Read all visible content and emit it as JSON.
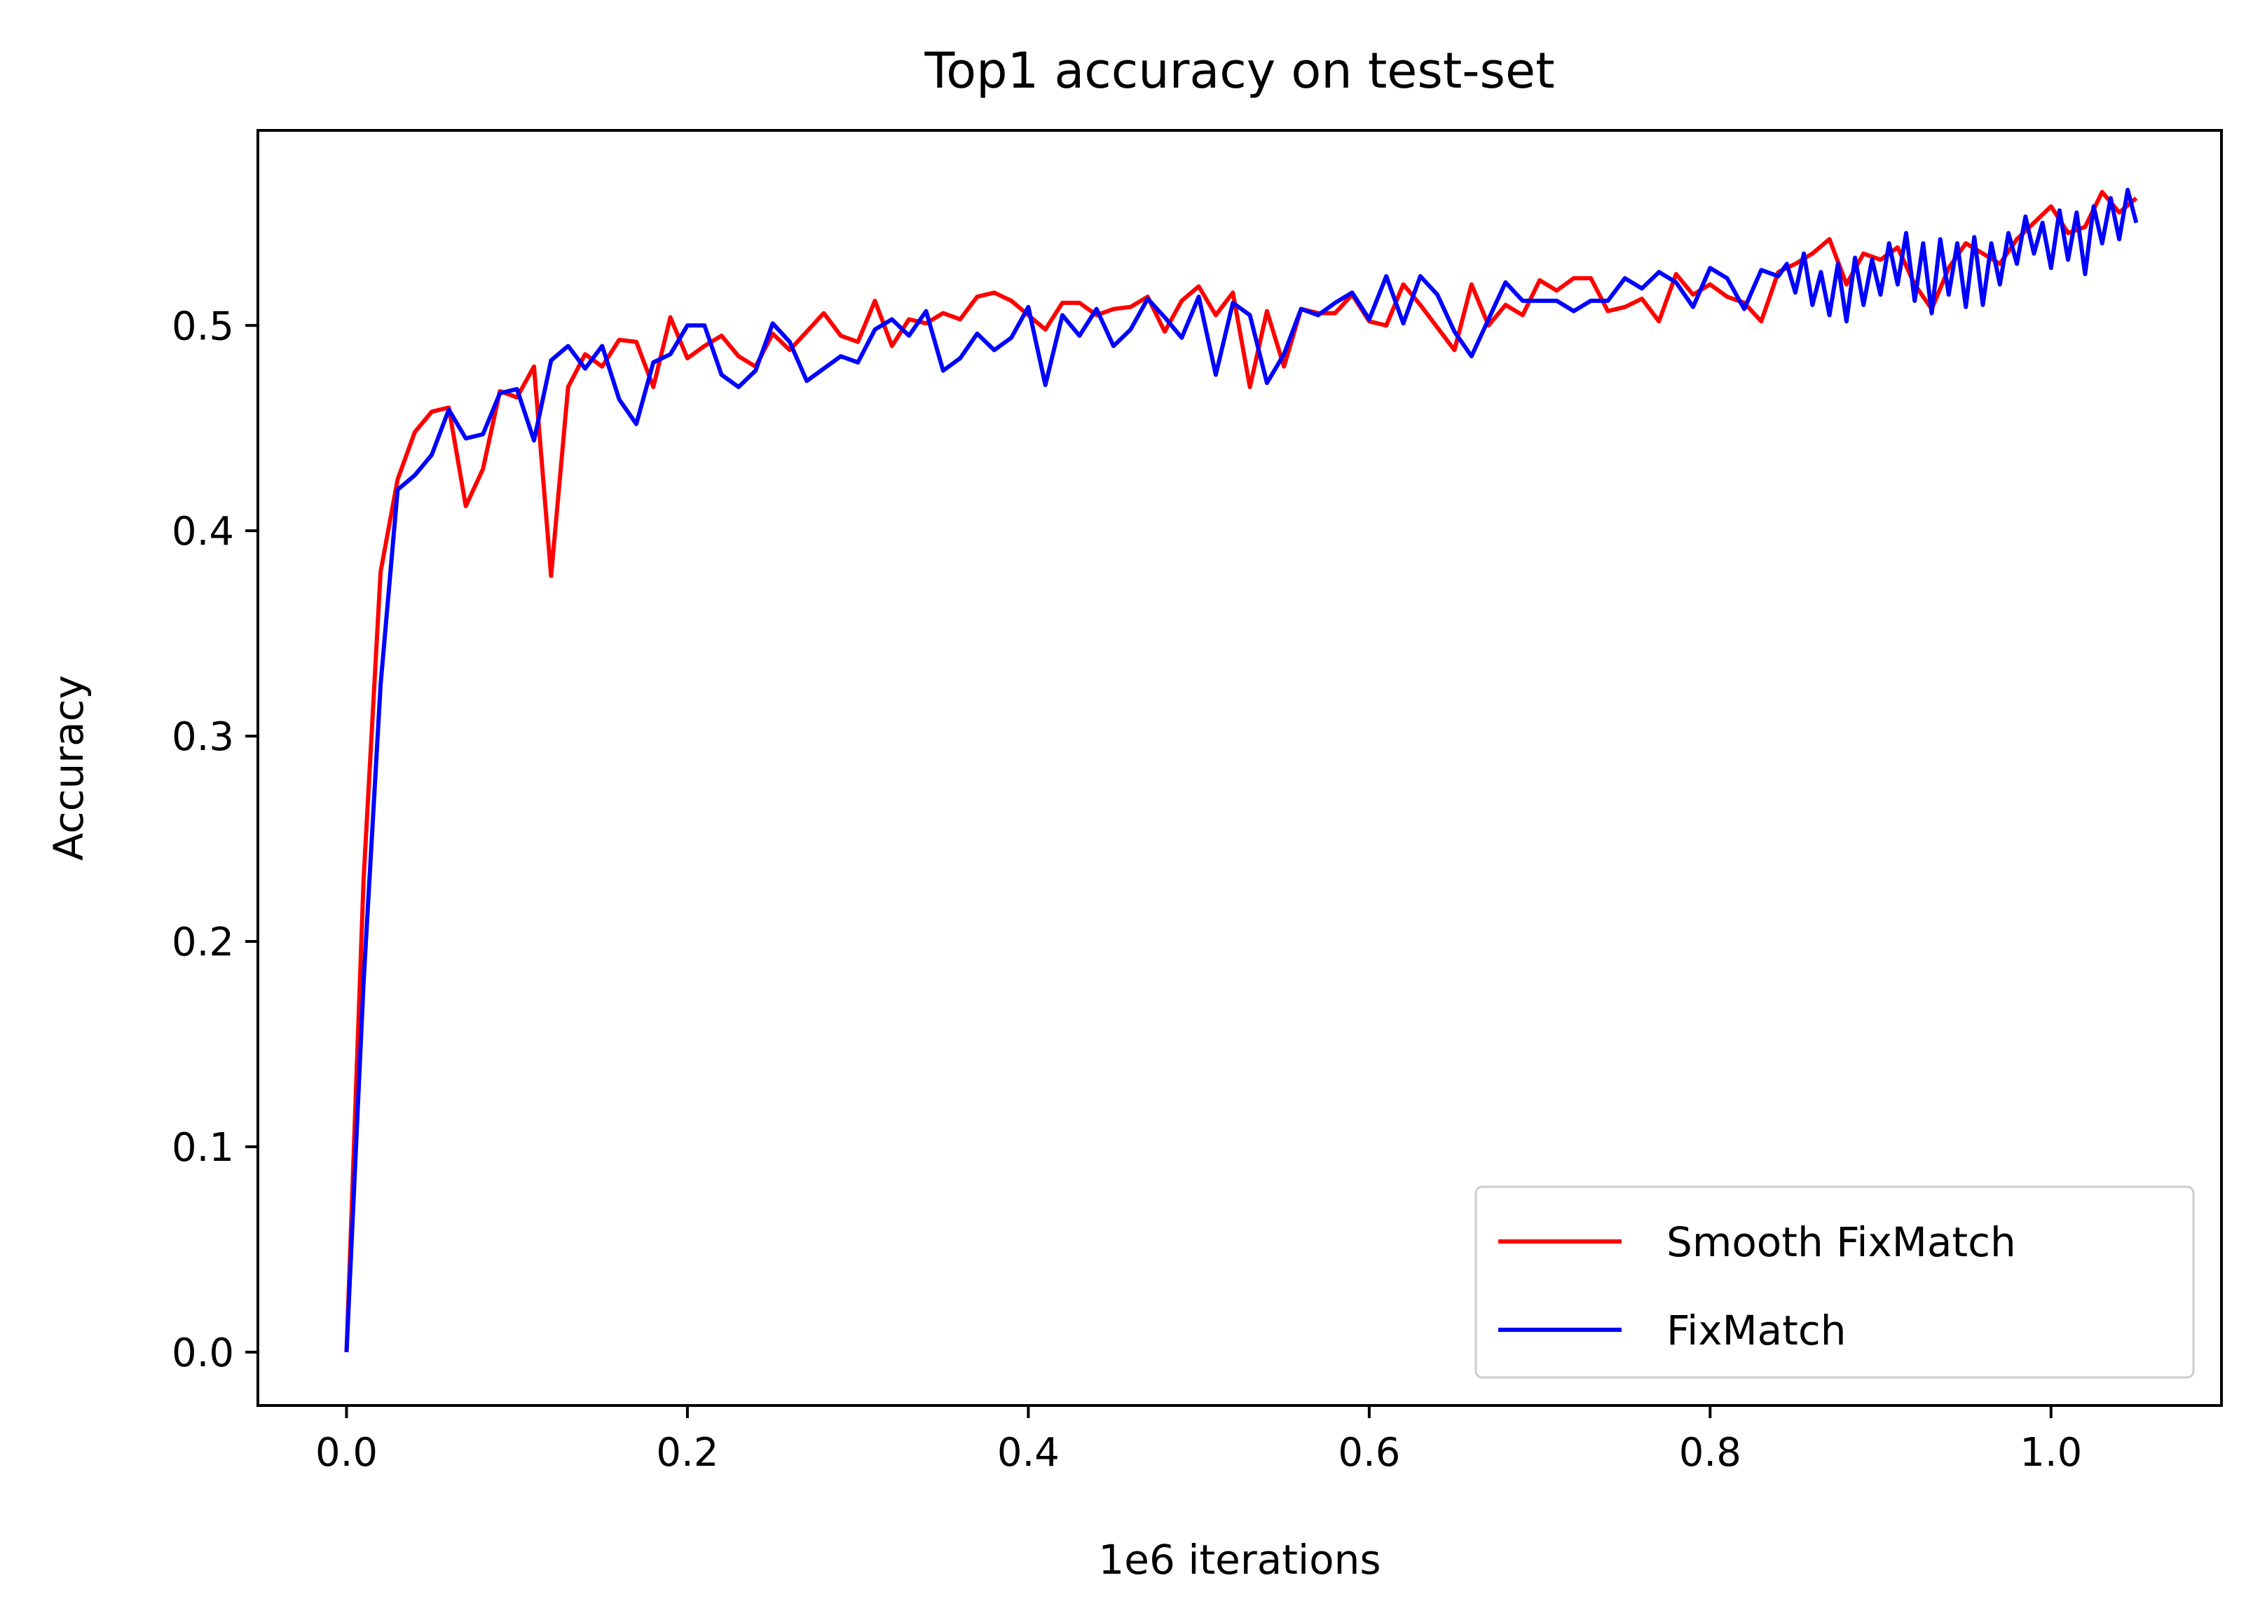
{
  "chart_data": {
    "type": "line",
    "title": "Top1 accuracy on test-set",
    "xlabel": "1e6 iterations",
    "ylabel": "Accuracy",
    "xlim": [
      -0.052,
      1.1
    ],
    "ylim": [
      -0.026,
      0.595
    ],
    "xticks": [
      0.0,
      0.2,
      0.4,
      0.6,
      0.8,
      1.0
    ],
    "xtick_labels": [
      "0.0",
      "0.2",
      "0.4",
      "0.6",
      "0.8",
      "1.0"
    ],
    "yticks": [
      0.0,
      0.1,
      0.2,
      0.3,
      0.4,
      0.5
    ],
    "ytick_labels": [
      "0.0",
      "0.1",
      "0.2",
      "0.3",
      "0.4",
      "0.5"
    ],
    "grid": false,
    "legend_position": "bottom-right",
    "series": [
      {
        "name": "Smooth FixMatch",
        "color": "#ff0000",
        "x": [
          0.0,
          0.01,
          0.02,
          0.03,
          0.04,
          0.05,
          0.06,
          0.07,
          0.08,
          0.09,
          0.1,
          0.11,
          0.12,
          0.13,
          0.14,
          0.15,
          0.16,
          0.17,
          0.18,
          0.19,
          0.2,
          0.21,
          0.22,
          0.23,
          0.24,
          0.25,
          0.26,
          0.27,
          0.28,
          0.29,
          0.3,
          0.31,
          0.32,
          0.33,
          0.34,
          0.35,
          0.36,
          0.37,
          0.38,
          0.39,
          0.4,
          0.41,
          0.42,
          0.43,
          0.44,
          0.45,
          0.46,
          0.47,
          0.48,
          0.49,
          0.5,
          0.51,
          0.52,
          0.53,
          0.54,
          0.55,
          0.56,
          0.57,
          0.58,
          0.59,
          0.6,
          0.61,
          0.62,
          0.63,
          0.64,
          0.65,
          0.66,
          0.67,
          0.68,
          0.69,
          0.7,
          0.71,
          0.72,
          0.73,
          0.74,
          0.75,
          0.76,
          0.77,
          0.78,
          0.79,
          0.8,
          0.81,
          0.82,
          0.83,
          0.84,
          0.85,
          0.86,
          0.87,
          0.88,
          0.89,
          0.9,
          0.91,
          0.92,
          0.93,
          0.94,
          0.95,
          0.96,
          0.97,
          0.98,
          0.99,
          1.0,
          1.01,
          1.02,
          1.03,
          1.04,
          1.05
        ],
        "y": [
          0.0,
          0.23,
          0.38,
          0.425,
          0.448,
          0.458,
          0.46,
          0.412,
          0.43,
          0.468,
          0.465,
          0.48,
          0.378,
          0.47,
          0.486,
          0.48,
          0.493,
          0.492,
          0.47,
          0.504,
          0.484,
          0.49,
          0.495,
          0.485,
          0.48,
          0.496,
          0.488,
          0.497,
          0.506,
          0.495,
          0.492,
          0.512,
          0.49,
          0.503,
          0.501,
          0.506,
          0.503,
          0.514,
          0.516,
          0.512,
          0.505,
          0.498,
          0.511,
          0.511,
          0.505,
          0.508,
          0.509,
          0.514,
          0.497,
          0.512,
          0.519,
          0.505,
          0.516,
          0.47,
          0.507,
          0.48,
          0.508,
          0.506,
          0.506,
          0.515,
          0.502,
          0.5,
          0.52,
          0.51,
          0.499,
          0.488,
          0.52,
          0.5,
          0.51,
          0.505,
          0.522,
          0.517,
          0.523,
          0.523,
          0.507,
          0.509,
          0.513,
          0.502,
          0.525,
          0.515,
          0.52,
          0.514,
          0.511,
          0.502,
          0.526,
          0.53,
          0.535,
          0.542,
          0.52,
          0.535,
          0.532,
          0.538,
          0.52,
          0.508,
          0.528,
          0.54,
          0.535,
          0.53,
          0.542,
          0.55,
          0.558,
          0.545,
          0.548,
          0.565,
          0.555,
          0.562
        ]
      },
      {
        "name": "FixMatch",
        "color": "#0000ff",
        "x": [
          0.0,
          0.01,
          0.02,
          0.03,
          0.04,
          0.05,
          0.06,
          0.07,
          0.08,
          0.09,
          0.1,
          0.11,
          0.12,
          0.13,
          0.14,
          0.15,
          0.16,
          0.17,
          0.18,
          0.19,
          0.2,
          0.21,
          0.22,
          0.23,
          0.24,
          0.25,
          0.26,
          0.27,
          0.28,
          0.29,
          0.3,
          0.31,
          0.32,
          0.33,
          0.34,
          0.35,
          0.36,
          0.37,
          0.38,
          0.39,
          0.4,
          0.41,
          0.42,
          0.43,
          0.44,
          0.45,
          0.46,
          0.47,
          0.48,
          0.49,
          0.5,
          0.51,
          0.52,
          0.53,
          0.54,
          0.55,
          0.56,
          0.57,
          0.58,
          0.59,
          0.6,
          0.61,
          0.62,
          0.63,
          0.64,
          0.65,
          0.66,
          0.67,
          0.68,
          0.69,
          0.7,
          0.71,
          0.72,
          0.73,
          0.74,
          0.75,
          0.76,
          0.77,
          0.78,
          0.79,
          0.8,
          0.81,
          0.82,
          0.83,
          0.84,
          0.845,
          0.85,
          0.855,
          0.86,
          0.865,
          0.87,
          0.875,
          0.88,
          0.885,
          0.89,
          0.895,
          0.9,
          0.905,
          0.91,
          0.915,
          0.92,
          0.925,
          0.93,
          0.935,
          0.94,
          0.945,
          0.95,
          0.955,
          0.96,
          0.965,
          0.97,
          0.975,
          0.98,
          0.985,
          0.99,
          0.995,
          1.0,
          1.005,
          1.01,
          1.015,
          1.02,
          1.025,
          1.03,
          1.035,
          1.04,
          1.045,
          1.05
        ],
        "y": [
          0.0,
          0.18,
          0.325,
          0.42,
          0.427,
          0.437,
          0.459,
          0.445,
          0.447,
          0.467,
          0.469,
          0.444,
          0.483,
          0.49,
          0.479,
          0.49,
          0.464,
          0.452,
          0.482,
          0.486,
          0.5,
          0.5,
          0.476,
          0.47,
          0.478,
          0.501,
          0.492,
          0.473,
          0.479,
          0.485,
          0.482,
          0.498,
          0.503,
          0.495,
          0.507,
          0.478,
          0.484,
          0.496,
          0.488,
          0.494,
          0.509,
          0.471,
          0.505,
          0.495,
          0.508,
          0.49,
          0.498,
          0.513,
          0.504,
          0.494,
          0.514,
          0.476,
          0.511,
          0.505,
          0.472,
          0.486,
          0.508,
          0.505,
          0.511,
          0.516,
          0.503,
          0.524,
          0.501,
          0.524,
          0.515,
          0.497,
          0.485,
          0.503,
          0.521,
          0.512,
          0.512,
          0.512,
          0.507,
          0.512,
          0.512,
          0.523,
          0.518,
          0.526,
          0.521,
          0.509,
          0.528,
          0.523,
          0.508,
          0.527,
          0.524,
          0.53,
          0.516,
          0.535,
          0.51,
          0.526,
          0.505,
          0.53,
          0.502,
          0.533,
          0.51,
          0.532,
          0.515,
          0.54,
          0.52,
          0.545,
          0.512,
          0.54,
          0.506,
          0.542,
          0.515,
          0.54,
          0.509,
          0.543,
          0.51,
          0.54,
          0.52,
          0.545,
          0.53,
          0.553,
          0.535,
          0.55,
          0.528,
          0.556,
          0.532,
          0.555,
          0.525,
          0.558,
          0.54,
          0.562,
          0.542,
          0.566,
          0.55
        ]
      }
    ]
  }
}
